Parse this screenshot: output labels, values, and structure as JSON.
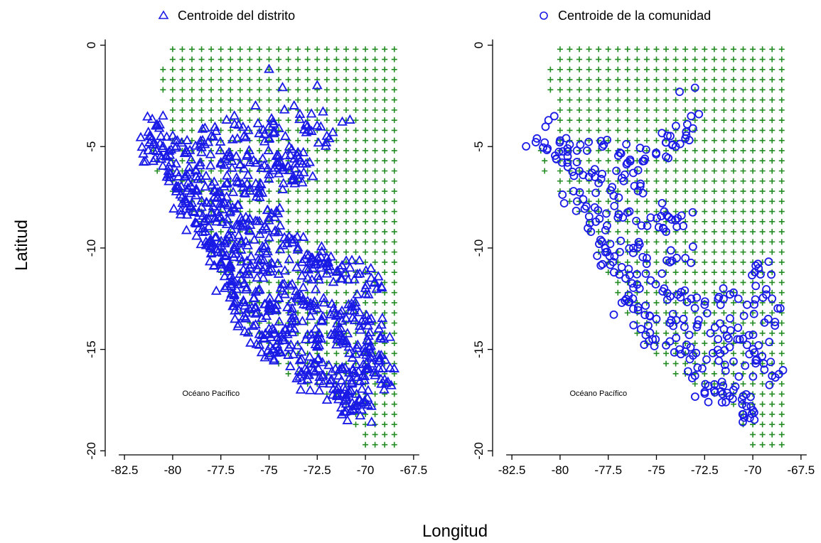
{
  "shared": {
    "xlabel": "Longitud",
    "ylabel": "Latitud",
    "xlim": [
      -83.5,
      -67.2
    ],
    "ylim": [
      -20.2,
      0.3
    ],
    "xticks": [
      -82.5,
      -80,
      -77.5,
      -75,
      -72.5,
      -70,
      -67.5
    ],
    "xtick_labels": [
      "-82.5",
      "-80",
      "-77.5",
      "-75",
      "-72.5",
      "-70",
      "-67.5"
    ],
    "yticks": [
      0,
      -5,
      -10,
      -15,
      -20
    ],
    "ytick_labels": [
      "0",
      "-5",
      "-10",
      "-15",
      "-20"
    ],
    "colors": {
      "grid_marker": "#228B22",
      "centroid_marker": "#1a1ae6"
    }
  },
  "chart_data": [
    {
      "type": "scatter",
      "legend": "top-center",
      "annotation": "Océano Pacífico",
      "annotation_position": {
        "x": -79.5,
        "y": -17.3
      },
      "series": [
        {
          "name": "",
          "marker": "plus",
          "color": "#228B22",
          "description_source": "regular 0.5 degree grid over Peru extent"
        },
        {
          "name": "Centroide del distrito",
          "marker": "triangle",
          "color": "#1a1ae6"
        }
      ],
      "grid_rows": [
        {
          "y": -0.2,
          "x_min": -80.0,
          "x_max": -68.5
        },
        {
          "y": -1.2,
          "x_min": -80.5,
          "x_max": -68.5
        },
        {
          "y": -2.2,
          "x_min": -80.5,
          "x_max": -68.5
        },
        {
          "y": -4.7,
          "x_min": -81.2,
          "x_max": -68.5
        },
        {
          "y": -6.2,
          "x_min": -80.8,
          "x_max": -68.5
        },
        {
          "y": -8.7,
          "x_min": -78.8,
          "x_max": -68.5
        },
        {
          "y": -10.7,
          "x_min": -77.8,
          "x_max": -68.5
        },
        {
          "y": -12.7,
          "x_min": -76.8,
          "x_max": -68.5
        },
        {
          "y": -14.7,
          "x_min": -75.8,
          "x_max": -68.5
        },
        {
          "y": -15.7,
          "x_min": -74.8,
          "x_max": -68.5
        },
        {
          "y": -16.7,
          "x_min": -73.3,
          "x_max": -68.5
        },
        {
          "y": -17.7,
          "x_min": -71.3,
          "x_max": -68.5
        },
        {
          "y": -19.7,
          "x_min": -70.0,
          "x_max": -68.5
        }
      ],
      "points": [
        [
          -75.0,
          -1.2
        ],
        [
          -72.5,
          -2.0
        ],
        [
          -74.3,
          -2.1
        ],
        [
          -73.7,
          -3.0
        ],
        [
          -74.2,
          -3.2
        ],
        [
          -75.7,
          -3.0
        ],
        [
          -72.8,
          -3.4
        ],
        [
          -72.2,
          -3.3
        ],
        [
          -70.8,
          -3.7
        ],
        [
          -71.2,
          -3.8
        ],
        [
          -76.8,
          -3.5
        ],
        [
          -77.2,
          -3.7
        ],
        [
          -80.5,
          -3.5
        ],
        [
          -80.8,
          -4.0
        ],
        [
          -81.2,
          -4.5
        ],
        [
          -73.0,
          -4.0
        ],
        [
          -72.0,
          -4.5
        ],
        [
          -74.7,
          -4.3
        ],
        [
          -75.3,
          -4.2
        ],
        [
          -76.3,
          -4.5
        ],
        [
          -78.0,
          -4.5
        ],
        [
          -81.0,
          -5.2
        ],
        [
          -80.5,
          -5.0
        ],
        [
          -79.8,
          -5.0
        ],
        [
          -79.3,
          -5.2
        ],
        [
          -78.5,
          -5.3
        ],
        [
          -77.5,
          -5.8
        ],
        [
          -76.7,
          -5.5
        ],
        [
          -75.8,
          -5.7
        ],
        [
          -74.5,
          -5.5
        ],
        [
          -73.5,
          -5.3
        ],
        [
          -74.0,
          -6.0
        ],
        [
          -74.8,
          -6.2
        ],
        [
          -73.8,
          -6.7
        ],
        [
          -73.2,
          -6.3
        ],
        [
          -80.2,
          -6.0
        ],
        [
          -79.7,
          -6.5
        ],
        [
          -79.2,
          -6.8
        ],
        [
          -78.8,
          -6.2
        ],
        [
          -78.3,
          -7.0
        ],
        [
          -77.8,
          -7.2
        ],
        [
          -77.2,
          -7.5
        ],
        [
          -76.6,
          -6.8
        ],
        [
          -76.0,
          -7.2
        ],
        [
          -75.5,
          -7.0
        ],
        [
          -79.5,
          -7.5
        ],
        [
          -79.0,
          -7.8
        ],
        [
          -78.5,
          -8.0
        ],
        [
          -78.0,
          -8.3
        ],
        [
          -77.5,
          -8.5
        ],
        [
          -77.0,
          -8.2
        ],
        [
          -76.2,
          -8.5
        ],
        [
          -75.5,
          -8.7
        ],
        [
          -74.7,
          -8.5
        ],
        [
          -75.0,
          -9.5
        ],
        [
          -78.8,
          -8.8
        ],
        [
          -78.3,
          -9.2
        ],
        [
          -77.8,
          -9.5
        ],
        [
          -77.3,
          -9.8
        ],
        [
          -76.8,
          -10.0
        ],
        [
          -76.2,
          -9.7
        ],
        [
          -75.5,
          -10.2
        ],
        [
          -74.2,
          -9.5
        ],
        [
          -73.5,
          -10.0
        ],
        [
          -72.8,
          -10.5
        ],
        [
          -72.0,
          -10.5
        ],
        [
          -78.0,
          -10.3
        ],
        [
          -77.5,
          -10.7
        ],
        [
          -77.0,
          -11.0
        ],
        [
          -76.5,
          -11.3
        ],
        [
          -76.0,
          -11.0
        ],
        [
          -75.3,
          -11.5
        ],
        [
          -74.5,
          -11.3
        ],
        [
          -73.8,
          -11.8
        ],
        [
          -73.0,
          -11.5
        ],
        [
          -72.3,
          -11.0
        ],
        [
          -71.5,
          -11.2
        ],
        [
          -70.8,
          -11.0
        ],
        [
          -69.7,
          -11.5
        ],
        [
          -70.0,
          -12.0
        ],
        [
          -77.3,
          -12.0
        ],
        [
          -76.8,
          -12.3
        ],
        [
          -76.3,
          -12.7
        ],
        [
          -75.8,
          -12.5
        ],
        [
          -75.2,
          -12.8
        ],
        [
          -74.5,
          -12.5
        ],
        [
          -73.8,
          -13.0
        ],
        [
          -73.2,
          -12.8
        ],
        [
          -72.5,
          -13.0
        ],
        [
          -71.8,
          -13.3
        ],
        [
          -71.0,
          -13.5
        ],
        [
          -70.3,
          -13.2
        ],
        [
          -69.7,
          -13.5
        ],
        [
          -69.3,
          -14.0
        ],
        [
          -76.2,
          -13.5
        ],
        [
          -75.7,
          -13.8
        ],
        [
          -75.0,
          -14.0
        ],
        [
          -74.3,
          -14.2
        ],
        [
          -73.7,
          -14.0
        ],
        [
          -73.0,
          -14.3
        ],
        [
          -72.3,
          -14.5
        ],
        [
          -71.6,
          -14.2
        ],
        [
          -71.0,
          -14.6
        ],
        [
          -70.4,
          -14.8
        ],
        [
          -69.8,
          -15.0
        ],
        [
          -69.3,
          -15.3
        ],
        [
          -75.5,
          -14.8
        ],
        [
          -74.8,
          -15.0
        ],
        [
          -74.0,
          -15.3
        ],
        [
          -73.3,
          -15.5
        ],
        [
          -72.6,
          -15.7
        ],
        [
          -71.9,
          -15.8
        ],
        [
          -71.2,
          -16.0
        ],
        [
          -70.6,
          -16.2
        ],
        [
          -70.0,
          -16.0
        ],
        [
          -69.5,
          -16.3
        ],
        [
          -69.0,
          -16.5
        ],
        [
          -73.0,
          -16.5
        ],
        [
          -72.2,
          -16.7
        ],
        [
          -71.5,
          -17.0
        ],
        [
          -70.9,
          -17.2
        ],
        [
          -70.3,
          -17.5
        ],
        [
          -70.6,
          -18.0
        ],
        [
          -70.2,
          -18.0
        ],
        [
          -71.0,
          -17.7
        ]
      ]
    },
    {
      "type": "scatter",
      "legend": "top-center",
      "annotation": "Océano Pacífico",
      "annotation_position": {
        "x": -79.5,
        "y": -17.3
      },
      "series": [
        {
          "name": "",
          "marker": "plus",
          "color": "#228B22"
        },
        {
          "name": "Centroide de la comunidad",
          "marker": "circle",
          "color": "#1a1ae6"
        }
      ],
      "grid_rows": [
        {
          "y": -0.2,
          "x_min": -80.0,
          "x_max": -68.5
        },
        {
          "y": -1.2,
          "x_min": -80.5,
          "x_max": -68.5
        },
        {
          "y": -2.2,
          "x_min": -80.5,
          "x_max": -68.5
        },
        {
          "y": -4.7,
          "x_min": -81.2,
          "x_max": -68.5
        },
        {
          "y": -6.2,
          "x_min": -80.8,
          "x_max": -68.5
        },
        {
          "y": -8.7,
          "x_min": -78.8,
          "x_max": -68.5
        },
        {
          "y": -10.7,
          "x_min": -77.8,
          "x_max": -68.5
        },
        {
          "y": -12.7,
          "x_min": -76.8,
          "x_max": -68.5
        },
        {
          "y": -14.7,
          "x_min": -75.8,
          "x_max": -68.5
        },
        {
          "y": -15.7,
          "x_min": -74.8,
          "x_max": -68.5
        },
        {
          "y": -16.7,
          "x_min": -73.3,
          "x_max": -68.5
        },
        {
          "y": -17.7,
          "x_min": -71.3,
          "x_max": -68.5
        },
        {
          "y": -19.7,
          "x_min": -70.0,
          "x_max": -68.5
        }
      ],
      "points": [
        [
          -73.0,
          -2.1
        ],
        [
          -73.8,
          -2.3
        ],
        [
          -73.2,
          -3.5
        ],
        [
          -72.8,
          -3.4
        ],
        [
          -73.4,
          -3.9
        ],
        [
          -80.3,
          -3.5
        ],
        [
          -80.6,
          -3.7
        ],
        [
          -81.2,
          -4.6
        ],
        [
          -80.8,
          -4.8
        ],
        [
          -80.0,
          -4.7
        ],
        [
          -79.5,
          -4.9
        ],
        [
          -78.6,
          -5.2
        ],
        [
          -77.8,
          -5.0
        ],
        [
          -76.9,
          -5.3
        ],
        [
          -76.5,
          -5.8
        ],
        [
          -75.6,
          -5.6
        ],
        [
          -74.5,
          -5.5
        ],
        [
          -74.0,
          -5.0
        ],
        [
          -74.5,
          -4.8
        ],
        [
          -73.5,
          -4.6
        ],
        [
          -80.2,
          -5.6
        ],
        [
          -79.6,
          -6.0
        ],
        [
          -79.0,
          -6.2
        ],
        [
          -78.5,
          -6.5
        ],
        [
          -78.0,
          -6.8
        ],
        [
          -77.3,
          -7.0
        ],
        [
          -76.7,
          -6.7
        ],
        [
          -76.2,
          -6.3
        ],
        [
          -75.7,
          -7.3
        ],
        [
          -79.3,
          -7.2
        ],
        [
          -78.8,
          -7.6
        ],
        [
          -78.2,
          -8.0
        ],
        [
          -77.6,
          -8.3
        ],
        [
          -77.0,
          -8.5
        ],
        [
          -76.4,
          -8.2
        ],
        [
          -75.3,
          -8.5
        ],
        [
          -74.6,
          -8.2
        ],
        [
          -74.2,
          -8.6
        ],
        [
          -73.7,
          -8.4
        ],
        [
          -74.5,
          -9.2
        ],
        [
          -78.4,
          -9.2
        ],
        [
          -77.9,
          -9.6
        ],
        [
          -77.4,
          -9.8
        ],
        [
          -76.9,
          -10.2
        ],
        [
          -76.2,
          -10.0
        ],
        [
          -75.5,
          -10.5
        ],
        [
          -74.3,
          -10.7
        ],
        [
          -73.5,
          -10.5
        ],
        [
          -77.8,
          -10.8
        ],
        [
          -77.2,
          -11.2
        ],
        [
          -76.6,
          -11.5
        ],
        [
          -76.0,
          -11.8
        ],
        [
          -75.3,
          -11.6
        ],
        [
          -74.6,
          -12.0
        ],
        [
          -73.9,
          -12.3
        ],
        [
          -73.2,
          -12.5
        ],
        [
          -72.5,
          -12.8
        ],
        [
          -71.8,
          -12.5
        ],
        [
          -71.0,
          -12.2
        ],
        [
          -70.3,
          -12.8
        ],
        [
          -69.7,
          -11.0
        ],
        [
          -69.6,
          -11.3
        ],
        [
          -69.3,
          -12.3
        ],
        [
          -69.0,
          -12.5
        ],
        [
          -69.2,
          -13.5
        ],
        [
          -76.8,
          -12.7
        ],
        [
          -76.2,
          -13.0
        ],
        [
          -75.6,
          -13.3
        ],
        [
          -75.0,
          -13.5
        ],
        [
          -74.3,
          -13.7
        ],
        [
          -73.6,
          -13.5
        ],
        [
          -72.9,
          -13.9
        ],
        [
          -72.2,
          -14.2
        ],
        [
          -71.5,
          -14.0
        ],
        [
          -70.8,
          -14.5
        ],
        [
          -70.2,
          -14.3
        ],
        [
          -69.7,
          -14.8
        ],
        [
          -75.8,
          -14.0
        ],
        [
          -75.2,
          -14.5
        ],
        [
          -74.5,
          -14.8
        ],
        [
          -73.8,
          -15.0
        ],
        [
          -73.1,
          -15.3
        ],
        [
          -72.4,
          -15.5
        ],
        [
          -71.7,
          -15.2
        ],
        [
          -71.0,
          -15.6
        ],
        [
          -70.4,
          -15.8
        ],
        [
          -69.8,
          -15.5
        ],
        [
          -69.4,
          -16.0
        ],
        [
          -69.0,
          -16.3
        ],
        [
          -73.0,
          -16.3
        ],
        [
          -72.3,
          -16.8
        ],
        [
          -71.6,
          -16.6
        ],
        [
          -71.0,
          -17.0
        ],
        [
          -70.5,
          -17.3
        ],
        [
          -70.1,
          -17.8
        ],
        [
          -70.5,
          -18.2
        ],
        [
          -70.0,
          -18.0
        ],
        [
          -71.4,
          -17.6
        ],
        [
          -72.5,
          -17.1
        ]
      ]
    }
  ]
}
